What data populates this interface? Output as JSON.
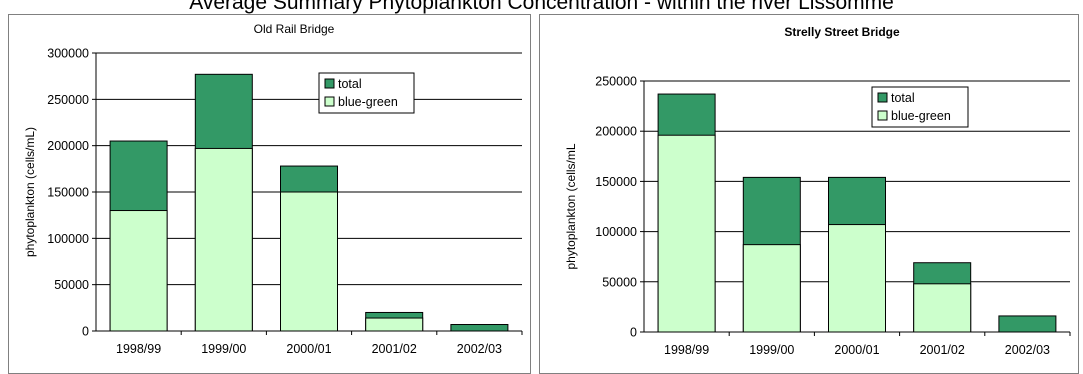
{
  "page_title": "Average Summary Phytoplankton Concentration - within the river Lissomme",
  "colors": {
    "total": "#339966",
    "blue_green": "#ccffcc",
    "outline": "#000000"
  },
  "chart_data": [
    {
      "type": "bar",
      "stacked": true,
      "title": "Old Rail Bridge",
      "title_bold": false,
      "xlabel": "",
      "ylabel": "phytoplankton (cells/mL)",
      "categories": [
        "1998/99",
        "1999/00",
        "2000/01",
        "2001/02",
        "2002/03"
      ],
      "series": [
        {
          "name": "blue-green",
          "values": [
            130000,
            197000,
            150000,
            14000,
            0
          ]
        },
        {
          "name": "total",
          "values": [
            205000,
            277000,
            178000,
            20000,
            7000
          ]
        }
      ],
      "ylim": [
        0,
        300000
      ],
      "yticks": [
        "0",
        "50000",
        "100000",
        "150000",
        "200000",
        "250000",
        "300000"
      ],
      "grid": true,
      "legend": "top-right"
    },
    {
      "type": "bar",
      "stacked": true,
      "title": "Strelly Street Bridge",
      "title_bold": true,
      "xlabel": "",
      "ylabel": "phytoplankton (cells/mL",
      "categories": [
        "1998/99",
        "1999/00",
        "2000/01",
        "2001/02",
        "2002/03"
      ],
      "series": [
        {
          "name": "blue-green",
          "values": [
            196000,
            87000,
            107000,
            48000,
            0
          ]
        },
        {
          "name": "total",
          "values": [
            237000,
            154000,
            154000,
            69000,
            16000
          ]
        }
      ],
      "ylim": [
        0,
        250000
      ],
      "yticks": [
        "0",
        "50000",
        "100000",
        "150000",
        "200000",
        "250000"
      ],
      "grid": true,
      "legend": "top-right"
    }
  ]
}
